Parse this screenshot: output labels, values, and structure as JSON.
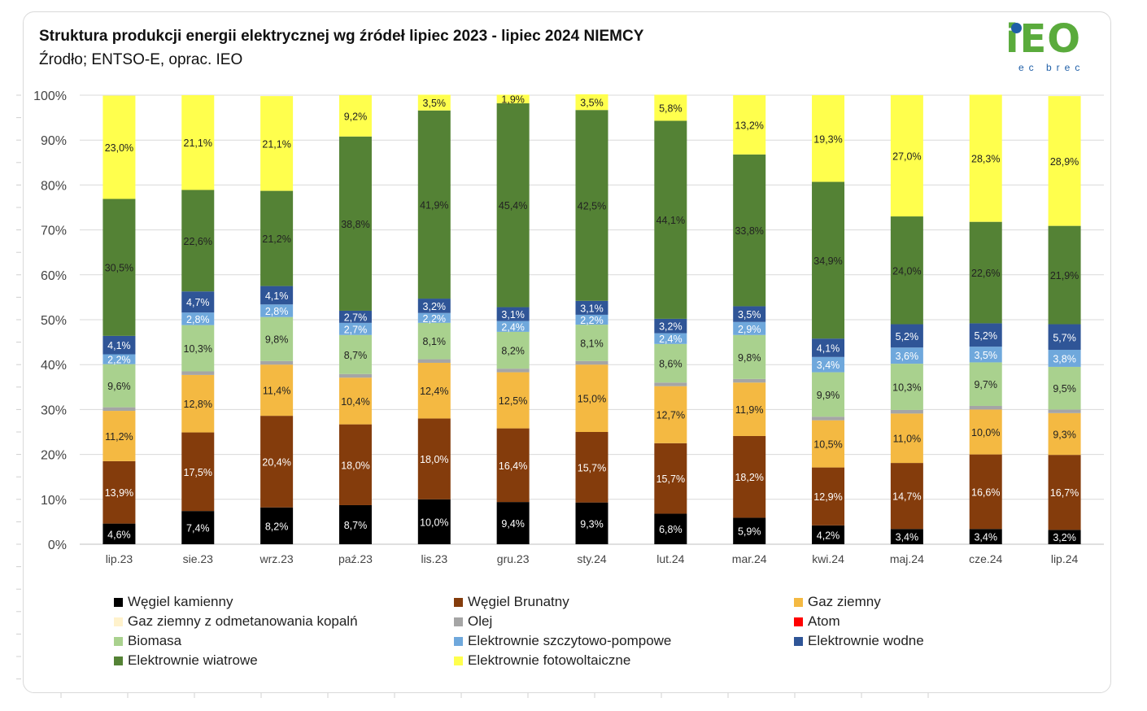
{
  "title": "Struktura produkcji energii elektrycznej wg źródeł lipiec 2023 -  lipiec 2024 NIEMCY",
  "subtitle": "Źrodło; ENTSO-E, oprac. IEO",
  "logo": {
    "mark": "iEO",
    "sub": "ec brec"
  },
  "chart_data": {
    "type": "bar",
    "stacked": "percent",
    "ylim": [
      0,
      100
    ],
    "yticks": [
      "0%",
      "10%",
      "20%",
      "30%",
      "40%",
      "50%",
      "60%",
      "70%",
      "80%",
      "90%",
      "100%"
    ],
    "grid": true,
    "legend_position": "bottom",
    "categories": [
      "lip.23",
      "sie.23",
      "wrz.23",
      "paź.23",
      "lis.23",
      "gru.23",
      "sty.24",
      "lut.24",
      "mar.24",
      "kwi.24",
      "maj.24",
      "cze.24",
      "lip.24"
    ],
    "series": [
      {
        "name": "Węgiel kamienny",
        "color": "#000000",
        "label_color": "#ffffff",
        "values": [
          4.6,
          7.4,
          8.2,
          8.7,
          10.0,
          9.4,
          9.3,
          6.8,
          5.9,
          4.2,
          3.4,
          3.4,
          3.2
        ],
        "labels": [
          "4,6%",
          "7,4%",
          "8,2%",
          "8,7%",
          "10,0%",
          "9,4%",
          "9,3%",
          "6,8%",
          "5,9%",
          "4,2%",
          "3,4%",
          "3,4%",
          "3,2%"
        ]
      },
      {
        "name": "Węgiel Brunatny",
        "color": "#843c0c",
        "label_color": "#ffffff",
        "values": [
          13.9,
          17.5,
          20.4,
          18.0,
          18.0,
          16.4,
          15.7,
          15.7,
          18.2,
          12.9,
          14.7,
          16.6,
          16.7
        ],
        "labels": [
          "13,9%",
          "17,5%",
          "20,4%",
          "18,0%",
          "18,0%",
          "16,4%",
          "15,7%",
          "15,7%",
          "18,2%",
          "12,9%",
          "14,7%",
          "16,6%",
          "16,7%"
        ]
      },
      {
        "name": "Gaz ziemny",
        "color": "#f4b942",
        "label_color": "#222222",
        "values": [
          11.2,
          12.8,
          11.4,
          10.4,
          12.4,
          12.5,
          15.0,
          12.7,
          11.9,
          10.5,
          11.0,
          10.0,
          9.3
        ],
        "labels": [
          "11,2%",
          "12,8%",
          "11,4%",
          "10,4%",
          "12,4%",
          "12,5%",
          "15,0%",
          "12,7%",
          "11,9%",
          "10,5%",
          "11,0%",
          "10,0%",
          "9,3%"
        ]
      },
      {
        "name": "Gaz ziemny z odmetanowania kopalń",
        "color": "#fff2cc",
        "label_color": "#222222",
        "values": [
          0,
          0,
          0,
          0,
          0,
          0,
          0,
          0,
          0,
          0,
          0,
          0,
          0
        ],
        "labels": []
      },
      {
        "name": "Olej",
        "color": "#a5a5a5",
        "label_color": "#222222",
        "values": [
          0.8,
          0.8,
          0.8,
          0.8,
          0.8,
          0.8,
          0.8,
          0.8,
          0.8,
          0.8,
          0.8,
          0.8,
          0.8
        ],
        "labels": []
      },
      {
        "name": "Atom",
        "color": "#ff0000",
        "label_color": "#222222",
        "values": [
          0,
          0,
          0,
          0,
          0,
          0,
          0,
          0,
          0,
          0,
          0,
          0,
          0
        ],
        "labels": []
      },
      {
        "name": "Biomasa",
        "color": "#a9d18e",
        "label_color": "#222222",
        "values": [
          9.6,
          10.3,
          9.8,
          8.7,
          8.1,
          8.2,
          8.1,
          8.6,
          9.8,
          9.9,
          10.3,
          9.7,
          9.5
        ],
        "labels": [
          "9,6%",
          "10,3%",
          "9,8%",
          "8,7%",
          "8,1%",
          "8,2%",
          "8,1%",
          "8,6%",
          "9,8%",
          "9,9%",
          "10,3%",
          "9,7%",
          "9,5%"
        ]
      },
      {
        "name": "Elektrownie szczytowo-pompowe",
        "color": "#6fa8dc",
        "label_color": "#ffffff",
        "values": [
          2.2,
          2.8,
          2.8,
          2.7,
          2.2,
          2.4,
          2.2,
          2.4,
          2.9,
          3.4,
          3.6,
          3.5,
          3.8
        ],
        "labels": [
          "2,2%",
          "2,8%",
          "2,8%",
          "2,7%",
          "2,2%",
          "2,4%",
          "2,2%",
          "2,4%",
          "2,9%",
          "3,4%",
          "3,6%",
          "3,5%",
          "3,8%"
        ]
      },
      {
        "name": "Elektrownie wodne",
        "color": "#2f5597",
        "label_color": "#ffffff",
        "values": [
          4.1,
          4.7,
          4.1,
          2.7,
          3.2,
          3.1,
          3.1,
          3.2,
          3.5,
          4.1,
          5.2,
          5.2,
          5.7
        ],
        "labels": [
          "4,1%",
          "4,7%",
          "4,1%",
          "2,7%",
          "3,2%",
          "3,1%",
          "3,1%",
          "3,2%",
          "3,5%",
          "4,1%",
          "5,2%",
          "5,2%",
          "5,7%"
        ]
      },
      {
        "name": "Elektrownie wiatrowe",
        "color": "#548235",
        "label_color": "#222222",
        "values": [
          30.5,
          22.6,
          21.2,
          38.8,
          41.9,
          45.4,
          42.5,
          44.1,
          33.8,
          34.9,
          24.0,
          22.6,
          21.9
        ],
        "labels": [
          "30,5%",
          "22,6%",
          "21,2%",
          "38,8%",
          "41,9%",
          "45,4%",
          "42,5%",
          "44,1%",
          "33,8%",
          "34,9%",
          "24,0%",
          "22,6%",
          "21,9%"
        ]
      },
      {
        "name": "Elektrownie fotowoltaiczne",
        "color": "#ffff4d",
        "label_color": "#222222",
        "values": [
          23.0,
          21.1,
          21.1,
          9.2,
          3.5,
          1.9,
          3.5,
          5.8,
          13.2,
          19.3,
          27.0,
          28.3,
          28.9
        ],
        "labels": [
          "23,0%",
          "21,1%",
          "21,1%",
          "9,2%",
          "3,5%",
          "1,9%",
          "3,5%",
          "5,8%",
          "13,2%",
          "19,3%",
          "27,0%",
          "28,3%",
          "28,9%"
        ]
      }
    ]
  }
}
